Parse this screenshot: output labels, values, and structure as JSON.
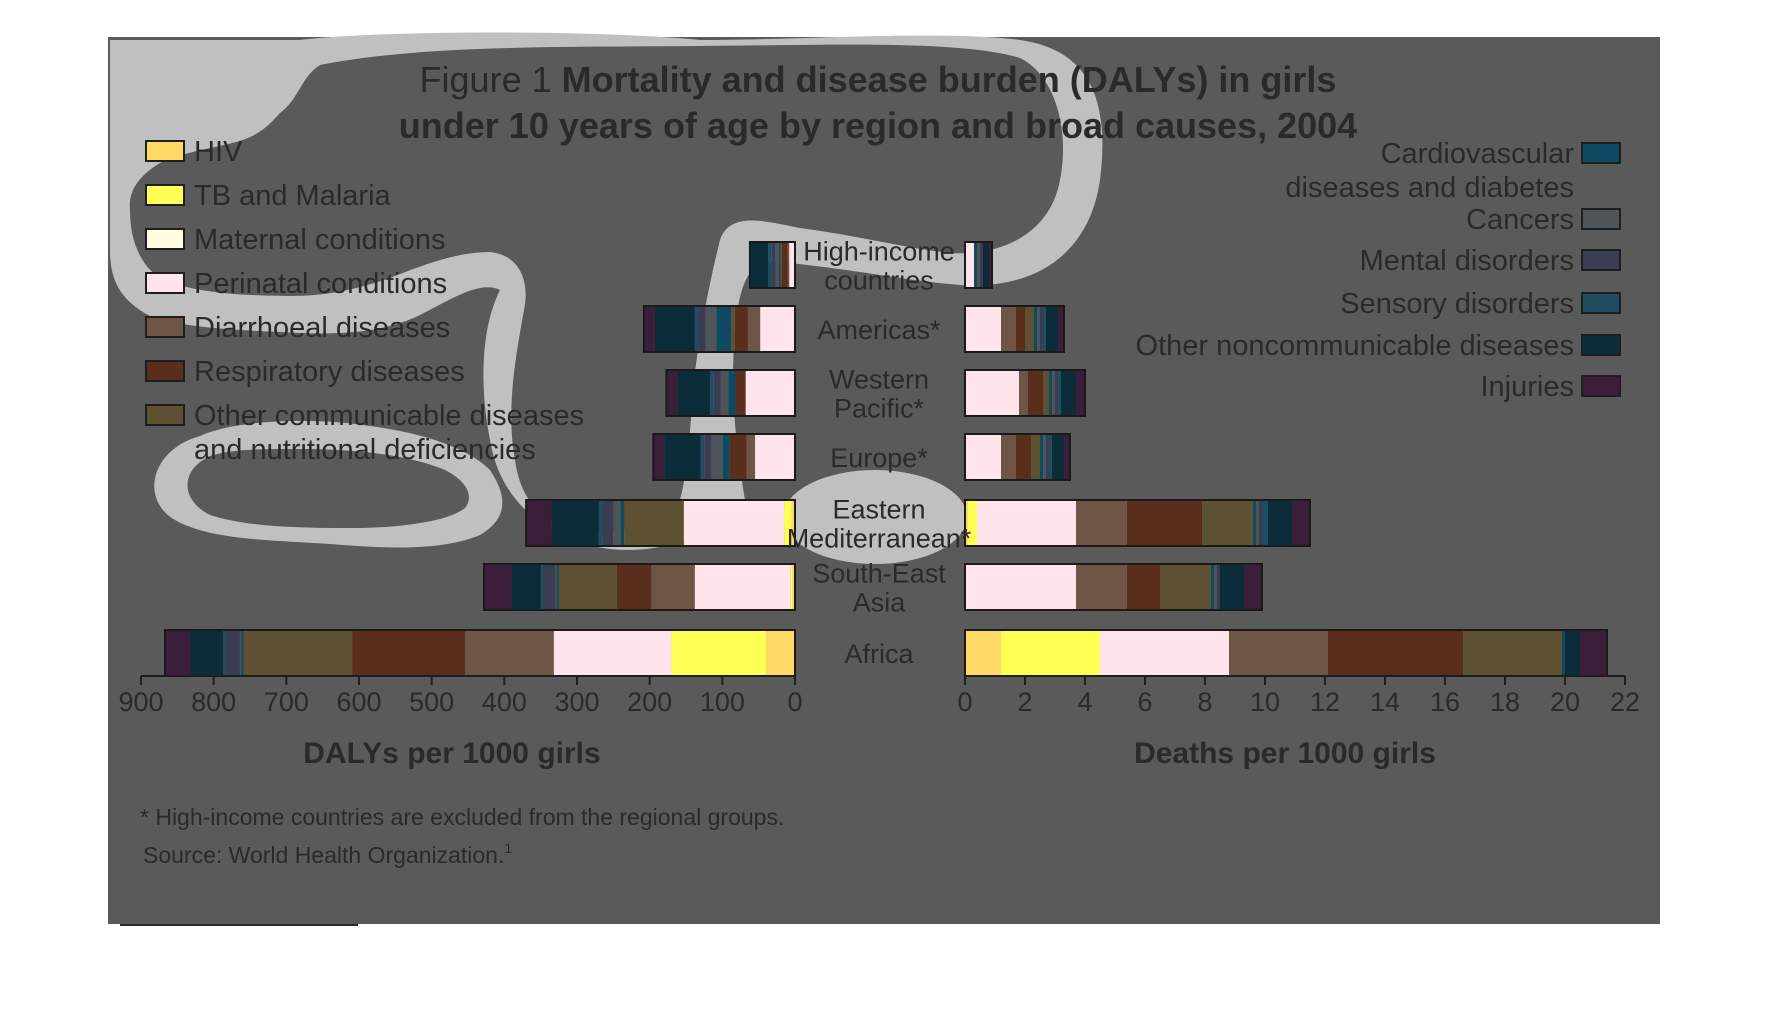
{
  "figure": {
    "title_prefix": "Figure 1",
    "title_bold_line1": "Mortality and disease burden (DALYs) in girls",
    "title_bold_line2": "under 10 years of age by region and broad causes, 2004",
    "footnote": "* High-income countries are excluded from the regional groups.",
    "source": "Source: World Health Organization.",
    "source_superscript": "1",
    "panel_color": "#5a5a5a",
    "overlay_color": "#c0c0c0"
  },
  "chart_data": {
    "type": "bar",
    "orientation": "horizontal",
    "stacked": true,
    "categories": [
      "High-income countries",
      "Americas*",
      "Western Pacific*",
      "Europe*",
      "Eastern Mediterranean*",
      "South-East Asia",
      "Africa"
    ],
    "category_lines": [
      [
        "High-income",
        "countries"
      ],
      [
        "Americas*"
      ],
      [
        "Western",
        "Pacific*"
      ],
      [
        "Europe*"
      ],
      [
        "Eastern",
        "Mediterranean*"
      ],
      [
        "South-East",
        "Asia"
      ],
      [
        "Africa"
      ]
    ],
    "legend": [
      {
        "name": "HIV",
        "lines": [
          "HIV"
        ],
        "color": "#ffd966"
      },
      {
        "name": "TB and Malaria",
        "lines": [
          "TB and Malaria"
        ],
        "color": "#ffff55"
      },
      {
        "name": "Maternal conditions",
        "lines": [
          "Maternal conditions"
        ],
        "color": "#fffde0"
      },
      {
        "name": "Perinatal conditions",
        "lines": [
          "Perinatal conditions"
        ],
        "color": "#ffe4ec"
      },
      {
        "name": "Diarrhoeal diseases",
        "lines": [
          "Diarrhoeal diseases"
        ],
        "color": "#6e5545"
      },
      {
        "name": "Respiratory diseases",
        "lines": [
          "Respiratory diseases"
        ],
        "color": "#5a2e1c"
      },
      {
        "name": "Other communicable diseases and nutritional deficiencies",
        "lines": [
          "Other communicable diseases",
          "and nutritional deficiencies"
        ],
        "color": "#5e5032"
      },
      {
        "name": "Cardiovascular diseases and diabetes",
        "lines": [
          "Cardiovascular",
          "diseases and diabetes"
        ],
        "color": "#0e4a62"
      },
      {
        "name": "Cancers",
        "lines": [
          "Cancers"
        ],
        "color": "#4f5458"
      },
      {
        "name": "Mental disorders",
        "lines": [
          "Mental disorders"
        ],
        "color": "#3a3c52"
      },
      {
        "name": "Sensory disorders",
        "lines": [
          "Sensory disorders"
        ],
        "color": "#1e4e60"
      },
      {
        "name": "Other noncommunicable diseases",
        "lines": [
          "Other noncommunicable diseases"
        ],
        "color": "#0c2c3a"
      },
      {
        "name": "Injuries",
        "lines": [
          "Injuries"
        ],
        "color": "#3a1e3a"
      }
    ],
    "segment_order": [
      "HIV",
      "TB and Malaria",
      "Perinatal conditions",
      "Diarrhoeal diseases",
      "Respiratory diseases",
      "Other communicable diseases and nutritional deficiencies",
      "Maternal conditions",
      "Cardiovascular diseases and diabetes",
      "Cancers",
      "Mental disorders",
      "Sensory disorders",
      "Other noncommunicable diseases",
      "Injuries"
    ],
    "dalys": {
      "xlabel": "DALYs per 1000 girls",
      "xlim": [
        0,
        900
      ],
      "ticks": [
        900,
        800,
        700,
        600,
        500,
        400,
        300,
        200,
        100,
        0
      ],
      "series": [
        {
          "name": "HIV",
          "values": [
            0,
            0,
            0,
            0,
            5,
            3,
            40
          ]
        },
        {
          "name": "TB and Malaria",
          "values": [
            0,
            0,
            0,
            0,
            10,
            3,
            130
          ]
        },
        {
          "name": "Perinatal conditions",
          "values": [
            8,
            48,
            68,
            55,
            138,
            132,
            162
          ]
        },
        {
          "name": "Diarrhoeal diseases",
          "values": [
            2,
            17,
            0,
            12,
            0,
            60,
            122
          ]
        },
        {
          "name": "Respiratory diseases",
          "values": [
            8,
            18,
            14,
            23,
            0,
            47,
            155
          ]
        },
        {
          "name": "Other communicable diseases and nutritional deficiencies",
          "values": [
            2,
            5,
            0,
            0,
            82,
            80,
            150
          ]
        },
        {
          "name": "Maternal conditions",
          "values": [
            0,
            0,
            0,
            0,
            0,
            0,
            0
          ]
        },
        {
          "name": "Cardiovascular diseases and diabetes",
          "values": [
            2,
            20,
            10,
            10,
            5,
            3,
            3
          ]
        },
        {
          "name": "Cancers",
          "values": [
            5,
            15,
            10,
            15,
            10,
            2,
            2
          ]
        },
        {
          "name": "Mental disorders",
          "values": [
            5,
            10,
            10,
            10,
            15,
            17,
            20
          ]
        },
        {
          "name": "Sensory disorders",
          "values": [
            5,
            5,
            5,
            5,
            5,
            3,
            3
          ]
        },
        {
          "name": "Other noncommunicable diseases",
          "values": [
            25,
            55,
            45,
            50,
            65,
            40,
            45
          ]
        },
        {
          "name": "Injuries",
          "values": [
            0,
            15,
            15,
            15,
            35,
            38,
            35
          ]
        }
      ]
    },
    "deaths": {
      "xlabel": "Deaths per 1000 girls",
      "xlim": [
        0,
        22
      ],
      "ticks": [
        0,
        2,
        4,
        6,
        8,
        10,
        12,
        14,
        16,
        18,
        20,
        22
      ],
      "series": [
        {
          "name": "HIV",
          "values": [
            0,
            0,
            0,
            0,
            0.1,
            0,
            1.2
          ]
        },
        {
          "name": "TB and Malaria",
          "values": [
            0,
            0,
            0,
            0,
            0.3,
            0,
            3.3
          ]
        },
        {
          "name": "Perinatal conditions",
          "values": [
            0.3,
            1.2,
            1.8,
            1.2,
            3.3,
            3.7,
            4.3
          ]
        },
        {
          "name": "Diarrhoeal diseases",
          "values": [
            0,
            0.5,
            0.3,
            0.5,
            1.7,
            1.7,
            3.3
          ]
        },
        {
          "name": "Respiratory diseases",
          "values": [
            0,
            0.3,
            0.5,
            0.5,
            2.5,
            1.1,
            4.5
          ]
        },
        {
          "name": "Other communicable diseases and nutritional deficiencies",
          "values": [
            0,
            0.3,
            0.2,
            0.3,
            1.7,
            1.7,
            3.3
          ]
        },
        {
          "name": "Maternal conditions",
          "values": [
            0,
            0,
            0,
            0,
            0,
            0,
            0
          ]
        },
        {
          "name": "Cardiovascular diseases and diabetes",
          "values": [
            0.1,
            0.1,
            0.1,
            0.1,
            0.1,
            0.1,
            0.1
          ]
        },
        {
          "name": "Cancers",
          "values": [
            0.1,
            0.1,
            0.1,
            0.1,
            0.1,
            0.1,
            0
          ]
        },
        {
          "name": "Mental disorders",
          "values": [
            0.1,
            0.1,
            0.1,
            0.1,
            0.1,
            0.1,
            0
          ]
        },
        {
          "name": "Sensory disorders",
          "values": [
            0,
            0.1,
            0.1,
            0.1,
            0.2,
            0,
            0
          ]
        },
        {
          "name": "Other noncommunicable diseases",
          "values": [
            0.2,
            0.4,
            0.5,
            0.4,
            0.8,
            0.8,
            0.5
          ]
        },
        {
          "name": "Injuries",
          "values": [
            0.1,
            0.2,
            0.3,
            0.2,
            0.6,
            0.6,
            0.9
          ]
        }
      ]
    }
  }
}
